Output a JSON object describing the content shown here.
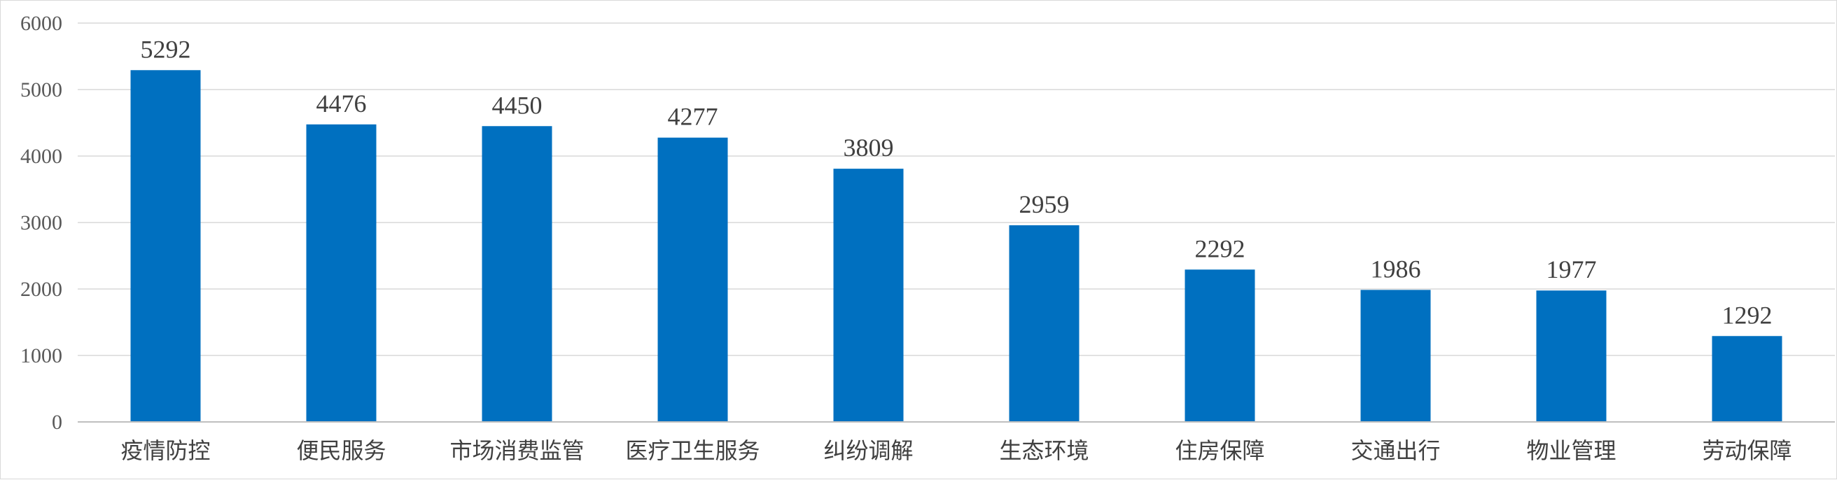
{
  "chart_data": {
    "type": "bar",
    "title": "",
    "xlabel": "",
    "ylabel": "",
    "categories": [
      "疫情防控",
      "便民服务",
      "市场消费监管",
      "医疗卫生服务",
      "纠纷调解",
      "生态环境",
      "住房保障",
      "交通出行",
      "物业管理",
      "劳动保障"
    ],
    "values": [
      5292,
      4476,
      4450,
      4277,
      3809,
      2959,
      2292,
      1986,
      1977,
      1292
    ],
    "ylim": [
      0,
      6000
    ],
    "yticks": [
      0,
      1000,
      2000,
      3000,
      4000,
      5000,
      6000
    ],
    "grid": true,
    "legend": "none",
    "bar_color": "#0070C0"
  }
}
